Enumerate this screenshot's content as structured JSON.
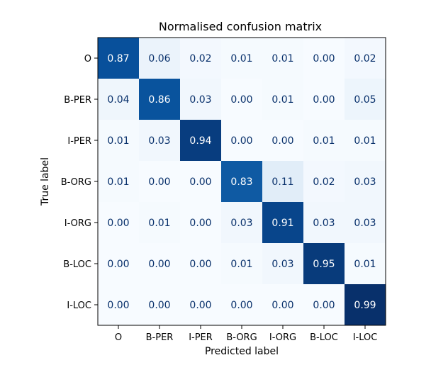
{
  "chart_data": {
    "type": "heatmap",
    "title": "Normalised confusion matrix",
    "xlabel": "Predicted label",
    "ylabel": "True label",
    "x_categories": [
      "O",
      "B-PER",
      "I-PER",
      "B-ORG",
      "I-ORG",
      "B-LOC",
      "I-LOC"
    ],
    "y_categories": [
      "O",
      "B-PER",
      "I-PER",
      "B-ORG",
      "I-ORG",
      "B-LOC",
      "I-LOC"
    ],
    "values": [
      [
        0.87,
        0.06,
        0.02,
        0.01,
        0.01,
        0.0,
        0.02
      ],
      [
        0.04,
        0.86,
        0.03,
        0.0,
        0.01,
        0.0,
        0.05
      ],
      [
        0.01,
        0.03,
        0.94,
        0.0,
        0.0,
        0.01,
        0.01
      ],
      [
        0.01,
        0.0,
        0.0,
        0.83,
        0.11,
        0.02,
        0.03
      ],
      [
        0.0,
        0.01,
        0.0,
        0.03,
        0.91,
        0.03,
        0.03
      ],
      [
        0.0,
        0.0,
        0.0,
        0.01,
        0.03,
        0.95,
        0.01
      ],
      [
        0.0,
        0.0,
        0.0,
        0.0,
        0.0,
        0.0,
        0.99
      ]
    ],
    "value_format": "0.00",
    "colormap": "Blues",
    "color_low": "#f7fbff",
    "color_high": "#08306b",
    "text_color_light": "#ffffff",
    "text_color_dark": "#08306b"
  }
}
